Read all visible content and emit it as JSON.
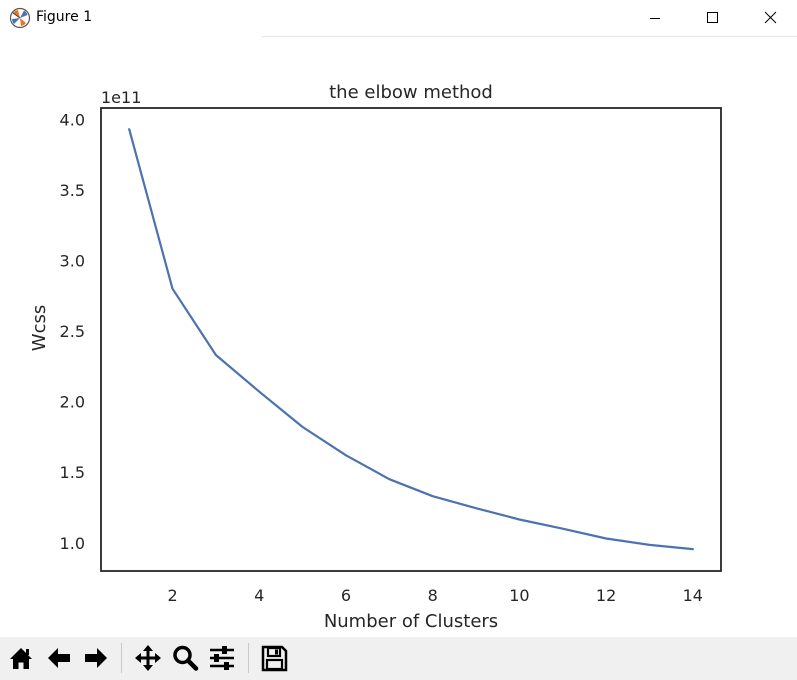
{
  "window": {
    "title": "Figure 1"
  },
  "chart_data": {
    "type": "line",
    "title": "the elbow method",
    "xlabel": "Number of Clusters",
    "ylabel": "Wcss",
    "offset_text": "1e11",
    "x": [
      1,
      2,
      3,
      4,
      5,
      6,
      7,
      8,
      9,
      10,
      11,
      12,
      13,
      14
    ],
    "series": [
      {
        "values": [
          3.93,
          2.8,
          2.33,
          2.07,
          1.82,
          1.62,
          1.45,
          1.33,
          1.245,
          1.165,
          1.1,
          1.03,
          0.985,
          0.955
        ],
        "color": "#4c72b0"
      }
    ],
    "xlim": [
      0.35,
      14.65
    ],
    "ylim": [
      0.8,
      4.08
    ],
    "xticks": [
      2,
      4,
      6,
      8,
      10,
      12,
      14
    ],
    "yticks": [
      1.0,
      1.5,
      2.0,
      2.5,
      3.0,
      3.5,
      4.0
    ],
    "ytick_labels": [
      "1.0",
      "1.5",
      "2.0",
      "2.5",
      "3.0",
      "3.5",
      "4.0"
    ],
    "grid": false,
    "legend": "none"
  },
  "toolbar": {
    "buttons": [
      "home-icon",
      "back-icon",
      "forward-icon",
      "pan-icon",
      "zoom-icon",
      "configure-subplots-icon",
      "save-icon"
    ]
  }
}
